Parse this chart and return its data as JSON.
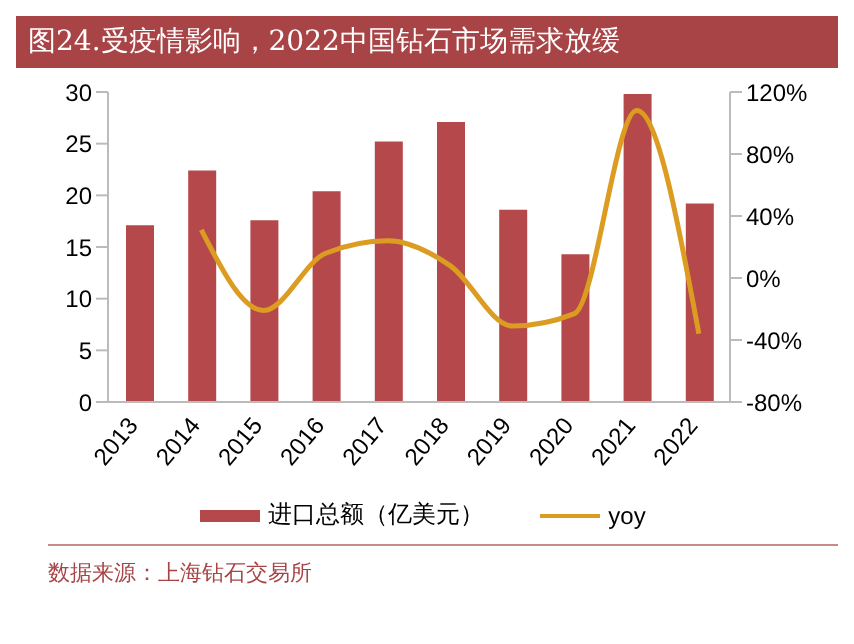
{
  "chart_data": {
    "type": "bar",
    "title": "图24.受疫情影响，2022中国钻石市场需求放缓",
    "categories": [
      "2013",
      "2014",
      "2015",
      "2016",
      "2017",
      "2018",
      "2019",
      "2020",
      "2021",
      "2022"
    ],
    "series": [
      {
        "name": "进口总额（亿美元）",
        "color": "#b5484a",
        "values": [
          17.1,
          22.4,
          17.6,
          20.4,
          25.2,
          27.1,
          18.6,
          14.3,
          29.8,
          19.2
        ]
      },
      {
        "name": "yoy",
        "type": "line",
        "axis": "y2",
        "color": "#dc9c22",
        "marker": "none",
        "values": [
          null,
          31,
          -21,
          16,
          24,
          8,
          -31,
          -23,
          108,
          -36
        ]
      }
    ],
    "ylim": [
      0,
      30
    ],
    "yticks": [
      0,
      5,
      10,
      15,
      20,
      25,
      30
    ],
    "y2lim": [
      -80,
      120
    ],
    "y2ticks": [
      {
        "value": -80,
        "label": "-80%"
      },
      {
        "value": -40,
        "label": "-40%"
      },
      {
        "value": 0,
        "label": "0%"
      },
      {
        "value": 40,
        "label": "40%"
      },
      {
        "value": 80,
        "label": "80%"
      },
      {
        "value": 120,
        "label": "120%"
      }
    ],
    "grid": false,
    "legend": "bottom",
    "annotations": [
      "数据来源：上海钻石交易所"
    ]
  }
}
